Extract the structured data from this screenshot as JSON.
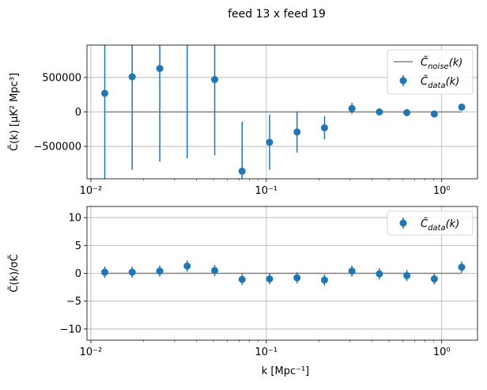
{
  "figure_title": "feed 13 x feed 19",
  "colors": {
    "data": "#1f77b4",
    "noise": "#808080",
    "grid": "#b0b0b0",
    "axes": "#000000"
  },
  "chart_data": [
    {
      "type": "scatter",
      "name": "top",
      "xscale": "log",
      "xlim": [
        0.0095,
        1.6
      ],
      "ylim": [
        -970000,
        970000
      ],
      "ylabel": "C̃(k) [μK² Mpc³]",
      "xticks": [
        0.01,
        0.1,
        1
      ],
      "xtick_labels": [
        "10⁻²",
        "10⁻¹",
        "10⁰"
      ],
      "yticks": [
        -500000,
        0,
        500000
      ],
      "ytick_labels": [
        "−500000",
        "0",
        "500000"
      ],
      "grid": true,
      "legend_position": "top-right",
      "legend": [
        {
          "key": "noise",
          "label": "C̃noise(k)"
        },
        {
          "key": "data",
          "label": "C̃data(k)"
        }
      ],
      "noise_line": {
        "name": "C̃noise(k)",
        "x": [
          0.012,
          1.3
        ],
        "y": [
          0,
          0
        ]
      },
      "series": [
        {
          "name": "C̃data(k)",
          "x": [
            0.012,
            0.0172,
            0.0247,
            0.0354,
            0.0508,
            0.0728,
            0.1044,
            0.1497,
            0.2147,
            0.3078,
            0.4413,
            0.6328,
            0.9073,
            1.3
          ],
          "y": [
            270000,
            510000,
            630000,
            null,
            470000,
            -860000,
            -440000,
            -290000,
            -230000,
            50000,
            0,
            -10000,
            -30000,
            70000
          ],
          "err": [
            1350000,
            1350000,
            1350000,
            1350000,
            1100000,
            720000,
            400000,
            300000,
            170000,
            80000,
            40000,
            20000,
            20000,
            40000
          ]
        }
      ]
    },
    {
      "type": "scatter",
      "name": "bottom",
      "xscale": "log",
      "xlim": [
        0.0095,
        1.6
      ],
      "ylim": [
        -12,
        12
      ],
      "xlabel": "k [Mpc⁻¹]",
      "ylabel": "C̃(k)/σC̃",
      "xticks": [
        0.01,
        0.1,
        1
      ],
      "xtick_labels": [
        "10⁻²",
        "10⁻¹",
        "10⁰"
      ],
      "yticks": [
        -10,
        -5,
        0,
        5,
        10
      ],
      "ytick_labels": [
        "−10",
        "−5",
        "0",
        "5",
        "10"
      ],
      "grid": true,
      "legend_position": "top-right",
      "legend": [
        {
          "key": "data",
          "label": "C̃data(k)"
        }
      ],
      "zero_line": {
        "x": [
          0.012,
          1.3
        ],
        "y": [
          0,
          0
        ]
      },
      "series": [
        {
          "name": "C̃data(k)",
          "x": [
            0.012,
            0.0172,
            0.0247,
            0.0354,
            0.0508,
            0.0728,
            0.1044,
            0.1497,
            0.2147,
            0.3078,
            0.4413,
            0.6328,
            0.9073,
            1.3
          ],
          "y": [
            0.2,
            0.2,
            0.4,
            1.3,
            0.5,
            -1.1,
            -1.0,
            -0.8,
            -1.2,
            0.4,
            -0.1,
            -0.4,
            -1.0,
            1.1
          ],
          "err": [
            1,
            1,
            1,
            1,
            1,
            1,
            1,
            1,
            1,
            1,
            1,
            1,
            1,
            1
          ]
        }
      ]
    }
  ]
}
